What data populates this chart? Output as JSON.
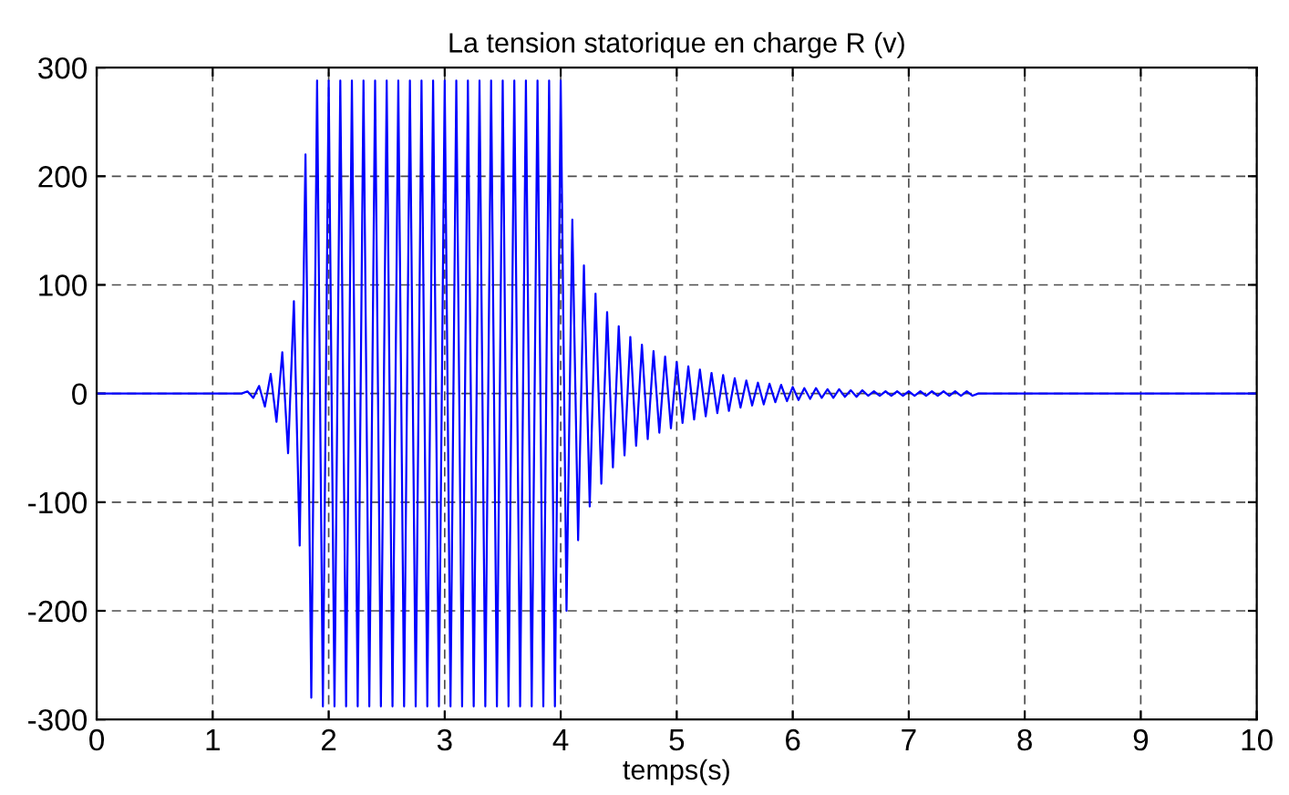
{
  "chart_data": {
    "type": "line",
    "title": "La tension statorique en charge R (v)",
    "xlabel": "temps(s)",
    "xlim": [
      0,
      10
    ],
    "xticks": [
      0,
      1,
      2,
      3,
      4,
      5,
      6,
      7,
      8,
      9,
      10
    ],
    "ylim": [
      -300,
      300
    ],
    "yticks": [
      -300,
      -200,
      -100,
      0,
      100,
      200,
      300
    ],
    "grid": true,
    "series": [
      {
        "color": "#0000ff",
        "x": [
          0,
          1.25,
          1.3,
          1.35,
          1.4,
          1.45,
          1.5,
          1.55,
          1.6,
          1.65,
          1.7,
          1.75,
          1.8,
          1.85,
          1.9,
          1.95,
          2.0,
          2.05,
          2.1,
          2.15,
          2.2,
          2.25,
          2.3,
          2.35,
          2.4,
          2.45,
          2.5,
          2.55,
          2.6,
          2.65,
          2.7,
          2.75,
          2.8,
          2.85,
          2.9,
          2.95,
          3.0,
          3.05,
          3.1,
          3.15,
          3.2,
          3.25,
          3.3,
          3.35,
          3.4,
          3.45,
          3.5,
          3.55,
          3.6,
          3.65,
          3.7,
          3.75,
          3.8,
          3.85,
          3.9,
          3.95,
          4.0,
          4.05,
          4.1,
          4.15,
          4.2,
          4.25,
          4.3,
          4.35,
          4.4,
          4.45,
          4.5,
          4.55,
          4.6,
          4.65,
          4.7,
          4.75,
          4.8,
          4.85,
          4.9,
          4.95,
          5.0,
          5.05,
          5.1,
          5.15,
          5.2,
          5.25,
          5.3,
          5.35,
          5.4,
          5.45,
          5.5,
          5.55,
          5.6,
          5.65,
          5.7,
          5.75,
          5.8,
          5.85,
          5.9,
          5.95,
          6.0,
          6.05,
          6.1,
          6.15,
          6.2,
          6.25,
          6.3,
          6.35,
          6.4,
          6.45,
          6.5,
          6.55,
          6.6,
          6.65,
          6.7,
          6.75,
          6.8,
          6.85,
          6.9,
          6.95,
          7.0,
          7.05,
          7.1,
          7.15,
          7.2,
          7.25,
          7.3,
          7.35,
          7.4,
          7.45,
          7.5,
          7.55,
          7.6,
          10
        ],
        "values": [
          0,
          0,
          2,
          -4,
          7,
          -12,
          18,
          -26,
          38,
          -55,
          85,
          -140,
          220,
          -280,
          288,
          -288,
          288,
          -288,
          288,
          -288,
          288,
          -288,
          288,
          -288,
          288,
          -288,
          288,
          -288,
          288,
          -288,
          288,
          -288,
          288,
          -288,
          288,
          -288,
          288,
          -288,
          288,
          -288,
          288,
          -288,
          288,
          -288,
          288,
          -288,
          288,
          -288,
          288,
          -288,
          288,
          -288,
          288,
          -288,
          288,
          -288,
          288,
          -200,
          160,
          -135,
          118,
          -104,
          92,
          -83,
          75,
          -68,
          62,
          -57,
          52,
          -48,
          45,
          -42,
          39,
          -36,
          34,
          -32,
          29,
          -27,
          25,
          -24,
          22,
          -21,
          19,
          -18,
          17,
          -16,
          14,
          -13,
          12,
          -11,
          10,
          -10,
          9,
          -8,
          8,
          -7,
          6,
          -6,
          5,
          -5,
          5,
          -4,
          4,
          -4,
          4,
          -3,
          3,
          -3,
          3,
          -2,
          2,
          -2,
          2,
          -2,
          2,
          -2,
          2,
          -2,
          2,
          -2,
          2,
          -2,
          2,
          -2,
          2,
          -2,
          2,
          -2,
          0,
          0
        ]
      }
    ]
  }
}
